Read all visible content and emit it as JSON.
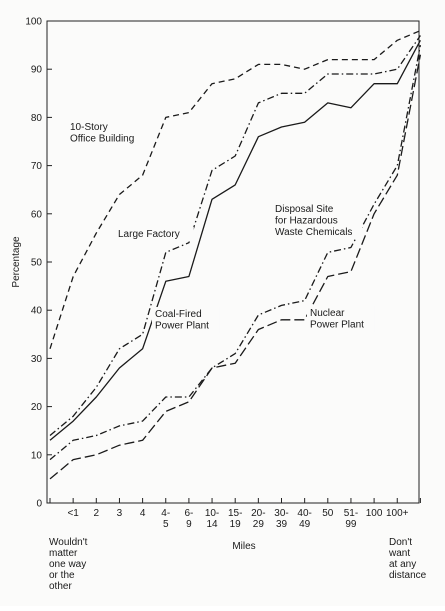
{
  "chart_data": {
    "type": "line",
    "title": "",
    "xlabel": "Miles",
    "ylabel": "Percentage",
    "ylim": [
      0,
      100
    ],
    "yticks": [
      0,
      10,
      20,
      30,
      40,
      50,
      60,
      70,
      80,
      90,
      100
    ],
    "grid": false,
    "legend": "none (series labeled inline)",
    "categories": [
      "Wouldn't matter one way or the other",
      "<1",
      "2",
      "3",
      "4",
      "4-5",
      "6-9",
      "10-14",
      "15-19",
      "20-29",
      "30-39",
      "40-49",
      "50",
      "51-99",
      "100",
      "100+",
      "Don't want at any distance"
    ],
    "category_labels": [
      [
        "Wouldn't",
        "matter",
        "one way",
        "or the",
        "other"
      ],
      [
        "<1"
      ],
      [
        "2"
      ],
      [
        "3"
      ],
      [
        "4"
      ],
      [
        "4-",
        "5"
      ],
      [
        "6-",
        "9"
      ],
      [
        "10-",
        "14"
      ],
      [
        "15-",
        "19"
      ],
      [
        "20-",
        "29"
      ],
      [
        "30-",
        "39"
      ],
      [
        "40-",
        "49"
      ],
      [
        "50"
      ],
      [
        "51-",
        "99"
      ],
      [
        "100"
      ],
      [
        "100+"
      ],
      [
        "Don't",
        "want",
        "at any",
        "distance"
      ]
    ],
    "series": [
      {
        "name": "10-Story Office Building",
        "label_lines": [
          "10-Story",
          "Office Building"
        ],
        "style": "dashed",
        "values": [
          32,
          47,
          56,
          64,
          68,
          80,
          81,
          87,
          88,
          91,
          91,
          90,
          92,
          92,
          92,
          96,
          98
        ]
      },
      {
        "name": "Large Factory",
        "label_lines": [
          "Large Factory"
        ],
        "style": "dashdot",
        "values": [
          14,
          18,
          24,
          32,
          35,
          52,
          54,
          69,
          72,
          83,
          85,
          85,
          89,
          89,
          89,
          90,
          97
        ]
      },
      {
        "name": "Coal-Fired Power Plant",
        "label_lines": [
          "Coal-Fired",
          "Power Plant"
        ],
        "style": "solid",
        "values": [
          13,
          17,
          22,
          28,
          32,
          46,
          47,
          63,
          66,
          76,
          78,
          79,
          83,
          82,
          87,
          87,
          96
        ]
      },
      {
        "name": "Disposal Site for Hazardous Waste Chemicals",
        "label_lines": [
          "Disposal Site",
          "for Hazardous",
          "Waste Chemicals"
        ],
        "style": "dashdot",
        "values": [
          9,
          13,
          14,
          16,
          17,
          22,
          22,
          28,
          31,
          39,
          41,
          42,
          52,
          53,
          62,
          70,
          95
        ]
      },
      {
        "name": "Nuclear Power Plant",
        "label_lines": [
          "Nuclear",
          "Power Plant"
        ],
        "style": "longdash",
        "values": [
          5,
          9,
          10,
          12,
          13,
          19,
          21,
          28,
          29,
          36,
          38,
          38,
          47,
          48,
          60,
          68,
          93
        ]
      }
    ]
  }
}
